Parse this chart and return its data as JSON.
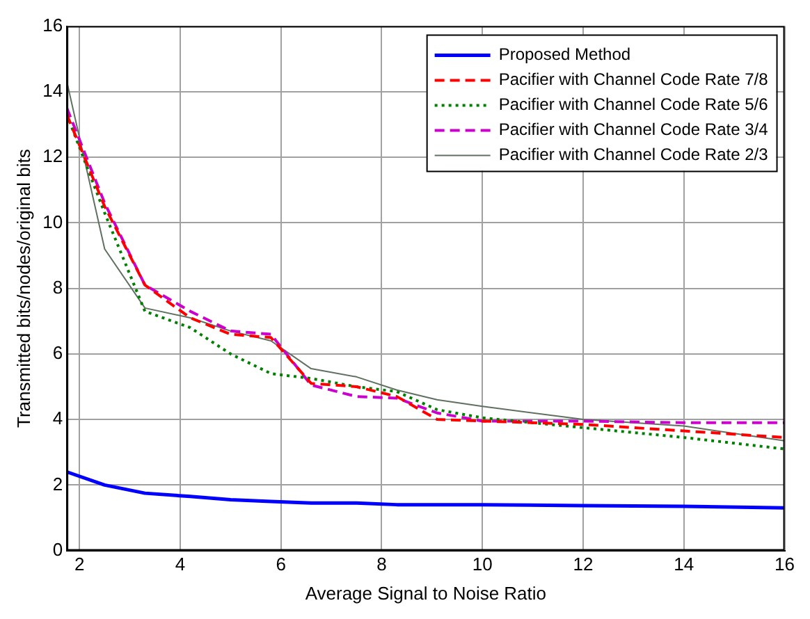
{
  "chart_data": {
    "type": "line",
    "xlabel": "Average Signal to Noise Ratio",
    "ylabel": "Transmitted bits/nodes/original bits",
    "xlim": [
      1.75,
      16
    ],
    "xticks": [
      2,
      4,
      6,
      8,
      10,
      12,
      14,
      16
    ],
    "ylim": [
      0,
      16
    ],
    "yticks": [
      0,
      2,
      4,
      6,
      8,
      10,
      12,
      14,
      16
    ],
    "grid": true,
    "legend": "top right",
    "marker": "none",
    "x": [
      1.75,
      2.5,
      3.3,
      4.2,
      5,
      5.8,
      6.6,
      7.5,
      8.3,
      9.1,
      10,
      12,
      14,
      16
    ],
    "series": [
      {
        "name": "Proposed Method",
        "color": "#0000ff",
        "line_style": "solid",
        "values": [
          2.4,
          2.0,
          1.75,
          1.65,
          1.55,
          1.5,
          1.45,
          1.45,
          1.4,
          1.4,
          1.4,
          1.37,
          1.35,
          1.3
        ]
      },
      {
        "name": "Pacifier with Channel Code Rate 7/8",
        "color": "#ff0000",
        "line_style": "dashed",
        "values": [
          13.3,
          10.5,
          8.1,
          7.1,
          6.6,
          6.5,
          5.1,
          5.0,
          4.7,
          4.0,
          3.95,
          3.85,
          3.65,
          3.45
        ]
      },
      {
        "name": "Pacifier with Channel Code Rate 5/6",
        "color": "#008000",
        "line_style": "dotted",
        "values": [
          13.3,
          10.3,
          7.3,
          6.8,
          6.0,
          5.4,
          5.25,
          5.0,
          4.85,
          4.3,
          4.05,
          3.75,
          3.45,
          3.1
        ]
      },
      {
        "name": "Pacifier with Channel Code Rate 3/4",
        "color": "#cc00cc",
        "line_style": "dashed",
        "values": [
          13.5,
          10.6,
          8.1,
          7.3,
          6.7,
          6.6,
          5.05,
          4.7,
          4.65,
          4.2,
          3.95,
          3.95,
          3.9,
          3.9
        ]
      },
      {
        "name": "Pacifier with Channel Code Rate 2/3",
        "color": "#607060",
        "line_style": "solid",
        "values": [
          14.3,
          9.2,
          7.4,
          7.1,
          6.7,
          6.4,
          5.55,
          5.3,
          4.9,
          4.6,
          4.4,
          4.0,
          3.8,
          3.35
        ]
      }
    ]
  }
}
